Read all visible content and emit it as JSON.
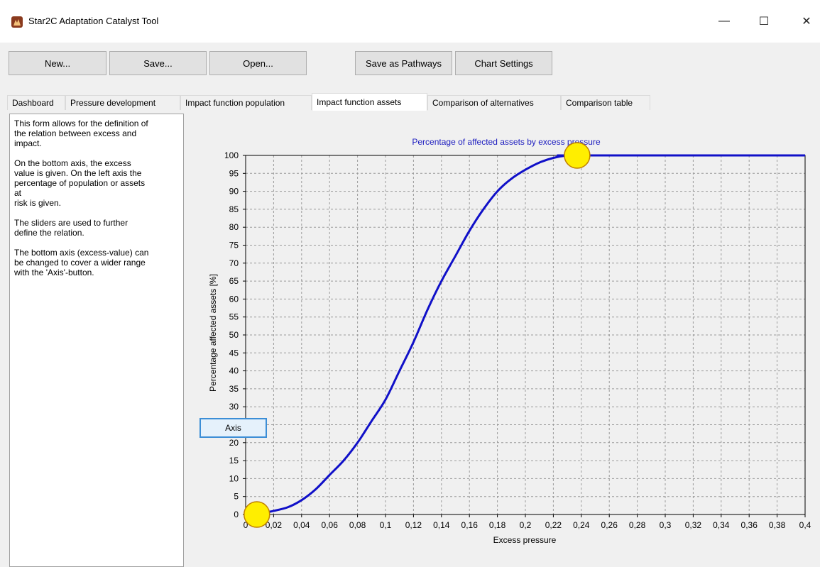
{
  "window": {
    "title": "Star2C Adaptation Catalyst Tool",
    "minimize_glyph": "—",
    "maximize_glyph": "☐",
    "close_glyph": "✕"
  },
  "toolbar": {
    "new_label": "New...",
    "save_label": "Save...",
    "open_label": "Open...",
    "save_pathways_label": "Save as Pathways",
    "chart_settings_label": "Chart Settings"
  },
  "tabs": [
    {
      "label": "Dashboard"
    },
    {
      "label": "Pressure development"
    },
    {
      "label": "Impact function population"
    },
    {
      "label": "Impact function assets"
    },
    {
      "label": "Comparison of alternatives"
    },
    {
      "label": "Comparison table"
    }
  ],
  "active_tab": "Impact function assets",
  "info": {
    "p1": "This form allows for the definition of\nthe relation between excess and\nimpact.",
    "p2": "On the bottom axis, the excess\nvalue is given. On the left axis the\npercentage of population or assets\nat\nrisk is given.",
    "p3": "The sliders are used to further\ndefine the relation.",
    "p4": "The bottom axis (excess-value) can\nbe changed to cover a wider range\nwith the 'Axis'-button."
  },
  "axis_button_label": "Axis",
  "colors": {
    "curve": "#1010c8",
    "handle_fill": "#ffee00",
    "handle_stroke": "#c08000",
    "title": "#2020c0",
    "grid": "#9a9a9a"
  },
  "chart_data": {
    "type": "line",
    "title": "Percentage of affected assets by excess pressure",
    "xlabel": "Excess pressure",
    "ylabel": "Percentage affected assets [%]",
    "xlim": [
      0,
      0.4
    ],
    "ylim": [
      0,
      100
    ],
    "x_ticks": [
      "0",
      "0,02",
      "0,04",
      "0,06",
      "0,08",
      "0,1",
      "0,12",
      "0,14",
      "0,16",
      "0,18",
      "0,2",
      "0,22",
      "0,24",
      "0,26",
      "0,28",
      "0,3",
      "0,32",
      "0,34",
      "0,36",
      "0,38",
      "0,4"
    ],
    "y_ticks": [
      "0",
      "5",
      "10",
      "15",
      "20",
      "25",
      "30",
      "35",
      "40",
      "45",
      "50",
      "55",
      "60",
      "65",
      "70",
      "75",
      "80",
      "85",
      "90",
      "95",
      "100"
    ],
    "grid": true,
    "series": [
      {
        "x": [
          0.008,
          0.02,
          0.03,
          0.04,
          0.05,
          0.06,
          0.07,
          0.08,
          0.09,
          0.1,
          0.11,
          0.12,
          0.13,
          0.14,
          0.15,
          0.16,
          0.17,
          0.18,
          0.19,
          0.2,
          0.21,
          0.22,
          0.23,
          0.237,
          0.4
        ],
        "y": [
          0,
          1,
          2,
          4,
          7,
          11,
          15,
          20,
          26,
          32,
          40,
          48,
          57,
          65,
          72,
          79,
          85,
          90,
          93.5,
          96,
          98,
          99.3,
          100,
          100,
          100
        ]
      }
    ],
    "handles": [
      {
        "x": 0.008,
        "y": 0
      },
      {
        "x": 0.237,
        "y": 100
      }
    ]
  }
}
